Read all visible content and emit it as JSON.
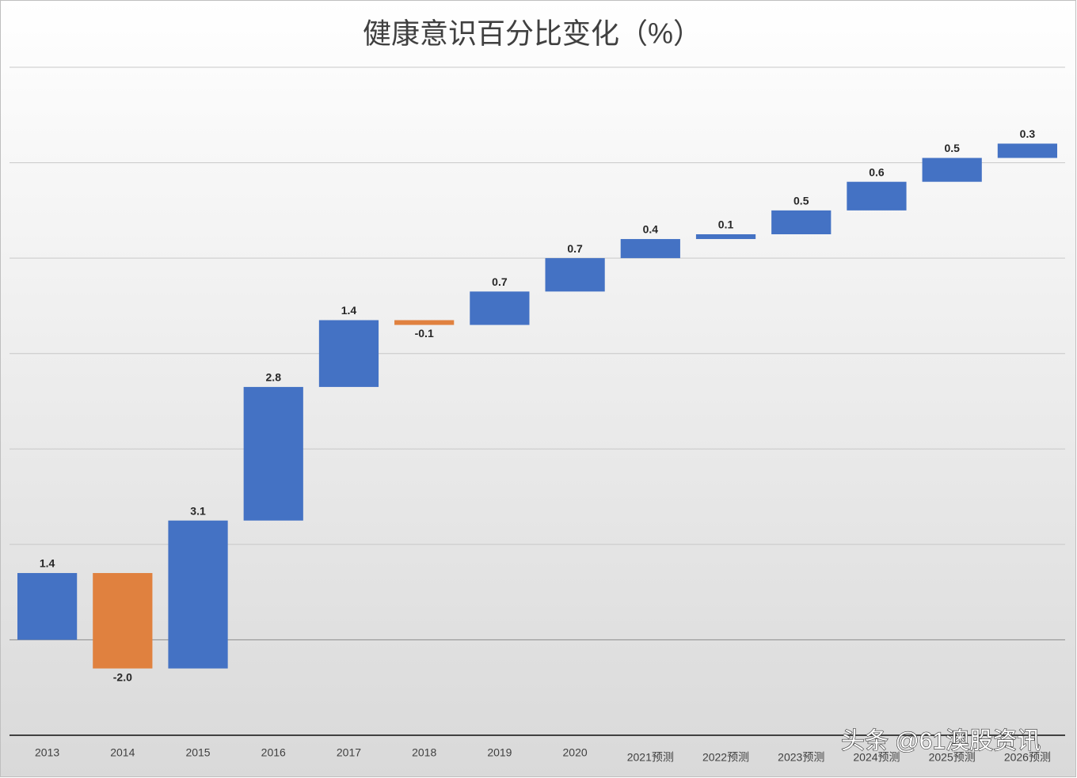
{
  "chart_data": {
    "type": "waterfall",
    "title": "健康意识百分比变化（%）",
    "categories": [
      "2013",
      "2014",
      "2015",
      "2016",
      "2017",
      "2018",
      "2019",
      "2020",
      "2021预测",
      "2022预测",
      "2023预测",
      "2024预测",
      "2025预测",
      "2026预测"
    ],
    "values": [
      1.4,
      -2.0,
      3.1,
      2.8,
      1.4,
      -0.1,
      0.7,
      0.7,
      0.4,
      0.1,
      0.5,
      0.6,
      0.5,
      0.3
    ],
    "value_labels": [
      "1.4",
      "-2.0",
      "3.1",
      "2.8",
      "1.4",
      "-0.1",
      "0.7",
      "0.7",
      "0.4",
      "0.1",
      "0.5",
      "0.6",
      "0.5",
      "0.3"
    ],
    "increase_color": "#4472c4",
    "decrease_color": "#e0813f",
    "ylim": [
      -2,
      12
    ],
    "yticks": [
      -2,
      0,
      2,
      4,
      6,
      8,
      10,
      12
    ],
    "grid": true,
    "watermark": "头条 @61澳股资讯"
  }
}
